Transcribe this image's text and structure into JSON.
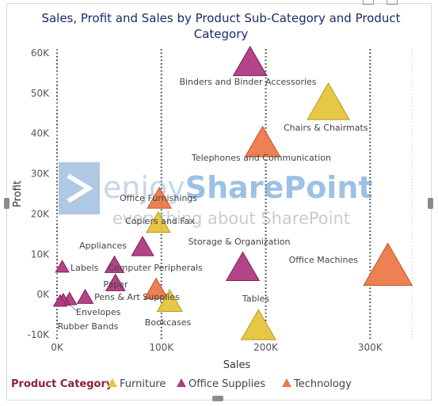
{
  "chart_data": {
    "type": "scatter",
    "title": "Sales, Profit and Sales by Product Sub-Category and Product Category",
    "title_lines": [
      "Sales, Profit and Sales by Product Sub-Category and Product",
      "Category"
    ],
    "xlabel": "Sales",
    "ylabel": "Profit",
    "xlim": [
      0,
      340000
    ],
    "ylim": [
      -10000,
      60000
    ],
    "xticks": [
      0,
      100000,
      200000,
      300000
    ],
    "xtick_labels": [
      "0K",
      "100K",
      "200K",
      "300K"
    ],
    "yticks": [
      -10000,
      0,
      10000,
      20000,
      30000,
      40000,
      50000,
      60000
    ],
    "ytick_labels": [
      "-10K",
      "0K",
      "10K",
      "20K",
      "30K",
      "40K",
      "50K",
      "60K"
    ],
    "marker": "triangle",
    "size_encoding": "Sales",
    "grid": "vertical dotted",
    "legend": {
      "title": "Product Category",
      "placement": "bottom-left",
      "entries": [
        {
          "name": "Furniture",
          "color": "#e6c43c"
        },
        {
          "name": "Office Supplies",
          "color": "#b03a82"
        },
        {
          "name": "Technology",
          "color": "#ec7a4a"
        }
      ]
    },
    "points": [
      {
        "label": "Binders and Binder Accessories",
        "category": "Office Supplies",
        "x": 185000,
        "y": 58000
      },
      {
        "label": "Chairs & Chairmats",
        "category": "Furniture",
        "x": 260000,
        "y": 48000
      },
      {
        "label": "Telephones and Communication",
        "category": "Technology",
        "x": 197000,
        "y": 38000
      },
      {
        "label": "Office Furnishings",
        "category": "Technology",
        "x": 98000,
        "y": 24000
      },
      {
        "label": "Copiers and Fax",
        "category": "Furniture",
        "x": 97000,
        "y": 18000
      },
      {
        "label": "Appliances",
        "category": "Office Supplies",
        "x": 82000,
        "y": 12000
      },
      {
        "label": "Storage & Organization",
        "category": "Office Supplies",
        "x": 178000,
        "y": 7000
      },
      {
        "label": "Office Machines",
        "category": "Technology",
        "x": 317000,
        "y": 7500
      },
      {
        "label": "Labels",
        "category": "Office Supplies",
        "x": 5000,
        "y": 7000
      },
      {
        "label": "Computer Peripherals",
        "category": "Office Supplies",
        "x": 55000,
        "y": 7500
      },
      {
        "label": "Paper",
        "category": "Office Supplies",
        "x": 56000,
        "y": 3000
      },
      {
        "label": "Pens & Art Supplies",
        "category": "Technology",
        "x": 95000,
        "y": 1500
      },
      {
        "label": "Envelopes",
        "category": "Office Supplies",
        "x": 12000,
        "y": -1000
      },
      {
        "label": "",
        "category": "Office Supplies",
        "x": 6000,
        "y": -1200
      },
      {
        "label": "",
        "category": "Office Supplies",
        "x": 27000,
        "y": -500
      },
      {
        "label": "Rubber Bands",
        "category": "Office Supplies",
        "x": 3000,
        "y": -1500
      },
      {
        "label": "Bookcases",
        "category": "Furniture",
        "x": 108000,
        "y": -1500
      },
      {
        "label": "Tables",
        "category": "Furniture",
        "x": 193000,
        "y": -7500
      }
    ]
  },
  "watermark": {
    "brand_part1": "enjoy",
    "brand_part2": "SharePoint",
    "tagline": "everything about SharePoint",
    "icon": "enjoysharepoint-logo-icon"
  }
}
